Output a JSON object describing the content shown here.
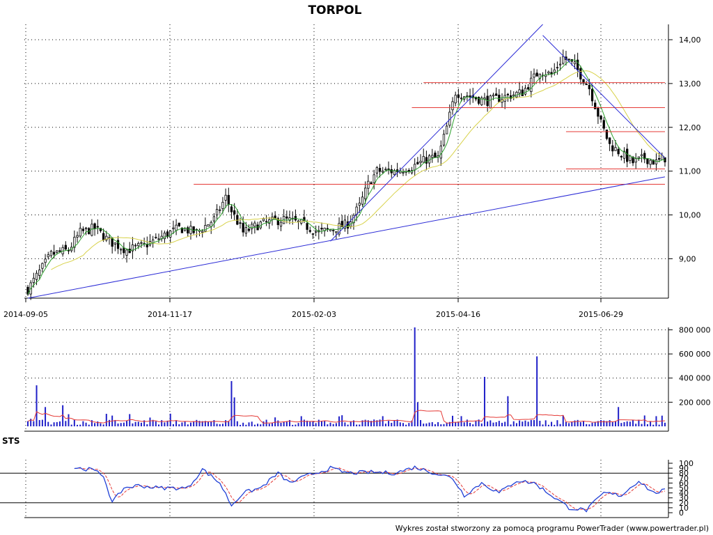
{
  "title": "TORPOL",
  "footer": "Wykres został stworzony za pomocą programu PowerTrader (www.powertrader.pl)",
  "sts_label": "STS",
  "colors": {
    "candle": "#000000",
    "sma_fast": "#2ca02c",
    "sma_slow": "#d8d24a",
    "trendline": "#2b2bd6",
    "resistance": "#e53935",
    "volume": "#1f1fc8",
    "volume_avg": "#e53935",
    "sts_k": "#1f3fd6",
    "sts_d": "#e53935",
    "sts_level": "#000000"
  },
  "chart_data": [
    {
      "type": "candlestick",
      "name": "price",
      "x_ticks": [
        "2014-09-05",
        "2014-11-17",
        "2015-02-03",
        "2015-04-16",
        "2015-06-29"
      ],
      "y_ticks": [
        "9,00",
        "10,00",
        "11,00",
        "12,00",
        "13,00",
        "14,00"
      ],
      "ylim": [
        8.1,
        14.35
      ],
      "grid": true,
      "session_count": 220,
      "anchors": [
        [
          0,
          8.3
        ],
        [
          3,
          8.6
        ],
        [
          8,
          9.1
        ],
        [
          14,
          9.2
        ],
        [
          18,
          9.6
        ],
        [
          23,
          9.7
        ],
        [
          28,
          9.4
        ],
        [
          34,
          9.2
        ],
        [
          40,
          9.3
        ],
        [
          46,
          9.5
        ],
        [
          52,
          9.7
        ],
        [
          58,
          9.6
        ],
        [
          64,
          9.9
        ],
        [
          68,
          10.4
        ],
        [
          70,
          10.1
        ],
        [
          74,
          9.6
        ],
        [
          80,
          9.8
        ],
        [
          88,
          9.9
        ],
        [
          94,
          9.8
        ],
        [
          100,
          9.6
        ],
        [
          106,
          9.7
        ],
        [
          110,
          9.8
        ],
        [
          114,
          10.2
        ],
        [
          117,
          10.7
        ],
        [
          120,
          11.0
        ],
        [
          126,
          11.0
        ],
        [
          132,
          11.1
        ],
        [
          138,
          11.3
        ],
        [
          141,
          11.3
        ],
        [
          144,
          12.0
        ],
        [
          147,
          12.8
        ],
        [
          152,
          12.7
        ],
        [
          158,
          12.6
        ],
        [
          164,
          12.7
        ],
        [
          170,
          12.8
        ],
        [
          176,
          13.3
        ],
        [
          180,
          13.2
        ],
        [
          184,
          13.6
        ],
        [
          188,
          13.4
        ],
        [
          193,
          12.9
        ],
        [
          197,
          12.1
        ],
        [
          200,
          11.6
        ],
        [
          204,
          11.4
        ],
        [
          208,
          11.2
        ],
        [
          212,
          11.3
        ],
        [
          216,
          11.2
        ],
        [
          219,
          11.3
        ]
      ],
      "trendlines": [
        {
          "from": [
            0,
            8.1
          ],
          "to": [
            219,
            10.87
          ]
        },
        {
          "from": [
            104,
            9.4
          ],
          "to": [
            177,
            14.35
          ]
        },
        {
          "from": [
            177,
            14.1
          ],
          "to": [
            219,
            11.3
          ]
        }
      ],
      "resistance_lines": [
        {
          "from": 57,
          "to": 219,
          "value": 10.7
        },
        {
          "from": 132,
          "to": 219,
          "value": 12.45
        },
        {
          "from": 136,
          "to": 219,
          "value": 13.02
        },
        {
          "from": 185,
          "to": 219,
          "value": 11.9
        },
        {
          "from": 185,
          "to": 219,
          "value": 11.05
        }
      ]
    },
    {
      "type": "bar",
      "name": "volume",
      "y_ticks": [
        "200 000",
        "400 000",
        "600 000",
        "800 000"
      ],
      "ylim": [
        0,
        820000
      ],
      "grid": true,
      "spikes": [
        [
          3,
          340000
        ],
        [
          6,
          160000
        ],
        [
          12,
          175000
        ],
        [
          70,
          375000
        ],
        [
          71,
          240000
        ],
        [
          133,
          820000
        ],
        [
          134,
          200000
        ],
        [
          157,
          410000
        ],
        [
          165,
          250000
        ],
        [
          175,
          580000
        ],
        [
          203,
          160000
        ],
        [
          212,
          90000
        ]
      ]
    },
    {
      "type": "line",
      "name": "STS",
      "y_ticks": [
        "0",
        "10",
        "20",
        "30",
        "40",
        "50",
        "60",
        "70",
        "80",
        "90",
        "100"
      ],
      "ylim": [
        0,
        100
      ],
      "levels": [
        20,
        80
      ],
      "k_anchors": [
        [
          16,
          91
        ],
        [
          22,
          87
        ],
        [
          26,
          75
        ],
        [
          29,
          20
        ],
        [
          33,
          50
        ],
        [
          38,
          55
        ],
        [
          45,
          50
        ],
        [
          55,
          50
        ],
        [
          60,
          88
        ],
        [
          66,
          60
        ],
        [
          70,
          15
        ],
        [
          74,
          40
        ],
        [
          80,
          50
        ],
        [
          86,
          80
        ],
        [
          90,
          60
        ],
        [
          96,
          75
        ],
        [
          104,
          90
        ],
        [
          110,
          80
        ],
        [
          118,
          82
        ],
        [
          126,
          80
        ],
        [
          133,
          92
        ],
        [
          140,
          80
        ],
        [
          146,
          70
        ],
        [
          150,
          35
        ],
        [
          156,
          60
        ],
        [
          162,
          40
        ],
        [
          168,
          65
        ],
        [
          174,
          60
        ],
        [
          180,
          35
        ],
        [
          186,
          10
        ],
        [
          192,
          5
        ],
        [
          198,
          40
        ],
        [
          204,
          35
        ],
        [
          210,
          65
        ],
        [
          215,
          40
        ],
        [
          219,
          45
        ]
      ]
    }
  ]
}
